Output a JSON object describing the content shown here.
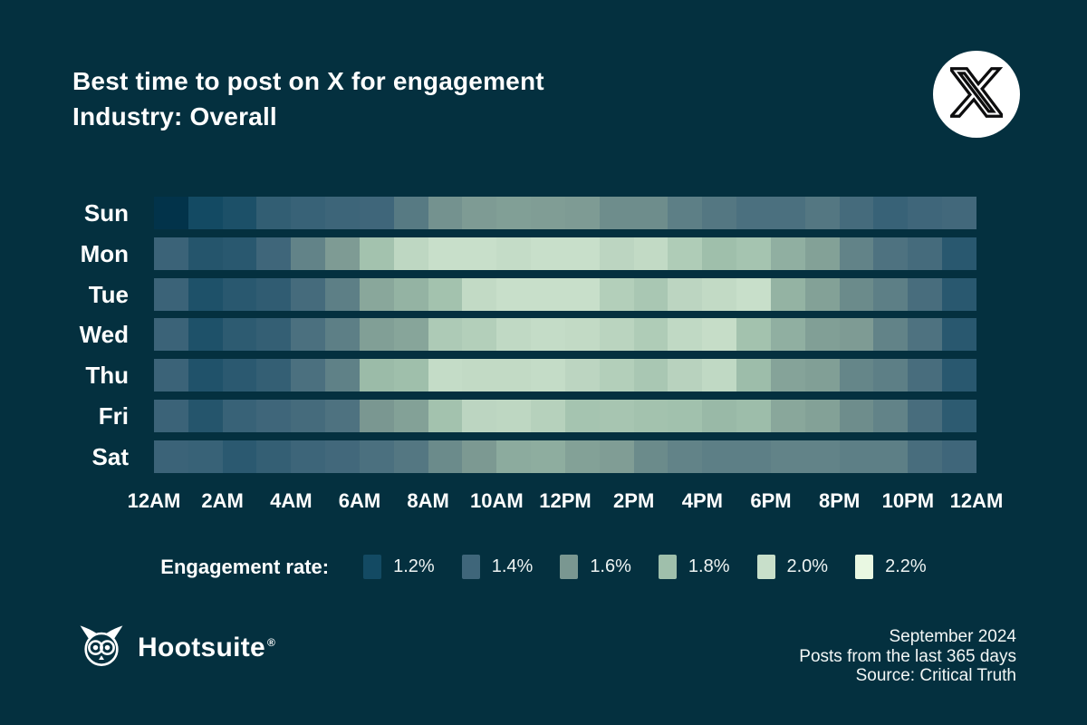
{
  "page": {
    "background": "#04303f"
  },
  "header": {
    "title_line1": "Best time to post on X for engagement",
    "title_line2": "Industry: Overall"
  },
  "chart_data": {
    "type": "heatmap",
    "title": "Best time to post on X for engagement",
    "subtitle": "Industry: Overall",
    "rows": [
      "Sun",
      "Mon",
      "Tue",
      "Wed",
      "Thu",
      "Fri",
      "Sat"
    ],
    "columns_per_row": 24,
    "x_tick_labels": [
      "12AM",
      "2AM",
      "4AM",
      "6AM",
      "8AM",
      "10AM",
      "12PM",
      "2PM",
      "4PM",
      "6PM",
      "8PM",
      "10PM",
      "12AM"
    ],
    "value_unit": "engagement rate %",
    "values": [
      [
        1.1,
        1.2,
        1.24,
        1.34,
        1.37,
        1.39,
        1.4,
        1.48,
        1.58,
        1.62,
        1.64,
        1.63,
        1.62,
        1.56,
        1.56,
        1.5,
        1.47,
        1.44,
        1.44,
        1.47,
        1.42,
        1.37,
        1.4,
        1.41
      ],
      [
        1.38,
        1.28,
        1.3,
        1.4,
        1.52,
        1.62,
        1.82,
        1.95,
        2.0,
        2.0,
        1.98,
        2.0,
        2.0,
        1.94,
        1.97,
        1.88,
        1.8,
        1.83,
        1.72,
        1.65,
        1.52,
        1.45,
        1.42,
        1.3
      ],
      [
        1.38,
        1.25,
        1.3,
        1.33,
        1.42,
        1.5,
        1.68,
        1.74,
        1.82,
        1.97,
        2.0,
        2.0,
        2.0,
        1.9,
        1.85,
        1.94,
        1.97,
        2.0,
        1.74,
        1.65,
        1.55,
        1.5,
        1.43,
        1.3
      ],
      [
        1.38,
        1.25,
        1.32,
        1.35,
        1.44,
        1.5,
        1.64,
        1.67,
        1.87,
        1.9,
        1.96,
        1.98,
        1.97,
        1.93,
        1.88,
        1.96,
        1.99,
        1.82,
        1.72,
        1.64,
        1.62,
        1.52,
        1.45,
        1.3
      ],
      [
        1.38,
        1.26,
        1.31,
        1.35,
        1.44,
        1.51,
        1.78,
        1.8,
        1.98,
        1.97,
        1.97,
        1.98,
        1.94,
        1.9,
        1.85,
        1.92,
        1.96,
        1.79,
        1.66,
        1.64,
        1.53,
        1.5,
        1.43,
        1.3
      ],
      [
        1.38,
        1.28,
        1.37,
        1.4,
        1.42,
        1.45,
        1.6,
        1.65,
        1.82,
        1.94,
        1.95,
        1.91,
        1.83,
        1.84,
        1.82,
        1.81,
        1.77,
        1.79,
        1.68,
        1.65,
        1.56,
        1.52,
        1.43,
        1.32
      ],
      [
        1.38,
        1.37,
        1.31,
        1.35,
        1.39,
        1.41,
        1.44,
        1.47,
        1.55,
        1.61,
        1.7,
        1.71,
        1.65,
        1.63,
        1.55,
        1.52,
        1.5,
        1.5,
        1.52,
        1.52,
        1.5,
        1.5,
        1.43,
        1.4
      ]
    ],
    "color_scale_stops": [
      [
        1.1,
        "#02334a"
      ],
      [
        1.2,
        "#134a63"
      ],
      [
        1.4,
        "#3f667a"
      ],
      [
        1.6,
        "#7a9791"
      ],
      [
        1.8,
        "#9fbfab"
      ],
      [
        2.0,
        "#c8dfca"
      ],
      [
        2.2,
        "#e9f8e2"
      ]
    ],
    "legend_position": "bottom",
    "grid": false
  },
  "legend": {
    "label": "Engagement rate:",
    "items": [
      {
        "label": "1.2%",
        "color": "#134a63"
      },
      {
        "label": "1.4%",
        "color": "#3f667a"
      },
      {
        "label": "1.6%",
        "color": "#7a9791"
      },
      {
        "label": "1.8%",
        "color": "#9fbfab"
      },
      {
        "label": "2.0%",
        "color": "#c8dfca"
      },
      {
        "label": "2.2%",
        "color": "#e9f8e2"
      }
    ]
  },
  "footer": {
    "brand": "Hootsuite",
    "brand_mark": "®",
    "meta_line1": "September 2024",
    "meta_line2": "Posts from the last 365 days",
    "meta_line3": "Source: Critical Truth"
  }
}
